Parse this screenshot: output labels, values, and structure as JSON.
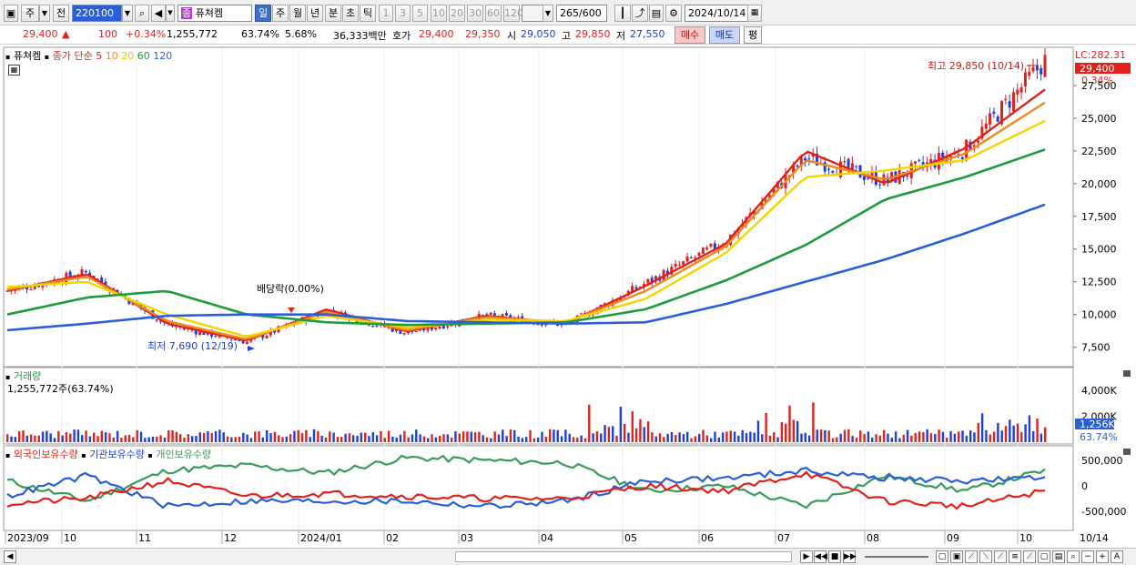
{
  "toolbar": {
    "market_label": "주",
    "prev_label": "전",
    "code": "220100",
    "stock_name": "퓨쳐켐",
    "name_prefix": "종",
    "period_tabs": [
      {
        "label": "일",
        "selected": true
      },
      {
        "label": "주",
        "selected": false
      },
      {
        "label": "월",
        "selected": false
      },
      {
        "label": "년",
        "selected": false
      },
      {
        "label": "분",
        "selected": false
      },
      {
        "label": "초",
        "selected": false
      },
      {
        "label": "틱",
        "selected": false
      }
    ],
    "interval_buttons": [
      "1",
      "3",
      "5",
      "10",
      "20",
      "30",
      "60",
      "120"
    ],
    "count_value": "265",
    "count_total": "/600",
    "date": "2024/10/14"
  },
  "quote": {
    "price": "29,400",
    "arrow": "▲",
    "change": "100",
    "change_pct": "+0.34%",
    "volume": "1,255,772",
    "vol_ratio": "63.74%",
    "turnover": "5.68%",
    "amount": "36,333백만",
    "hoga_label": "호가",
    "ask": "29,400",
    "bid": "29,350",
    "open_label": "시",
    "open": "29,050",
    "high_label": "고",
    "high": "29,850",
    "low_label": "저",
    "low": "27,550",
    "buy_label": "매수",
    "sell_label": "매도",
    "avg_label": "평"
  },
  "price_panel": {
    "title": "퓨쳐켐",
    "ma_label": "종가 단순",
    "ma_periods": [
      {
        "label": "5",
        "color": "#e1221c"
      },
      {
        "label": "10",
        "color": "#f08a1c"
      },
      {
        "label": "20",
        "color": "#f2d600"
      },
      {
        "label": "60",
        "color": "#1f9a3c"
      },
      {
        "label": "120",
        "color": "#2a5fd8"
      }
    ],
    "lc_label": "LC:282.31",
    "last_price_label": "29,400",
    "last_pct_label": "0.34%",
    "high_annot": "최고 29,850 (10/14)",
    "low_annot": "최저 7,690 (12/19)",
    "dividend_annot": "배당락(0.00%)",
    "y_ticks": [
      "27,500",
      "25,000",
      "22,500",
      "20,000",
      "17,500",
      "15,000",
      "12,500",
      "10,000",
      "7,500"
    ]
  },
  "volume_panel": {
    "title": "거래량",
    "value_label": "1,255,772주(63.74%)",
    "y_ticks": [
      "4,000K",
      "2,000K"
    ],
    "last_label": "1,256K",
    "last_pct": "63.74%"
  },
  "holding_panel": {
    "legend": [
      {
        "label": "외국인보유수량",
        "color": "#e1221c"
      },
      {
        "label": "기관보유수량",
        "color": "#2a5fd8"
      },
      {
        "label": "개인보유수량",
        "color": "#3a9a5a"
      }
    ],
    "y_ticks": [
      "500,000",
      "0",
      "-500,000"
    ]
  },
  "x_axis": {
    "labels": [
      "2023/09",
      "10",
      "11",
      "12",
      "2024/01",
      "02",
      "03",
      "04",
      "05",
      "06",
      "07",
      "08",
      "09",
      "10"
    ],
    "end_label": "10/14"
  },
  "chart_data": {
    "type": "candlestick",
    "title": "퓨쳐켐",
    "x": [
      "2023/09",
      "2023/10",
      "2023/11",
      "2023/12",
      "2024/01",
      "2024/02",
      "2024/03",
      "2024/04",
      "2024/05",
      "2024/06",
      "2024/07",
      "2024/08",
      "2024/09",
      "2024/10/14"
    ],
    "close": [
      11800,
      13200,
      9200,
      7900,
      10300,
      8600,
      9900,
      9200,
      12400,
      15600,
      22000,
      20200,
      22600,
      29400
    ],
    "series": [
      {
        "name": "5",
        "values": [
          11800,
          13100,
          9300,
          8000,
          10400,
          8700,
          9900,
          9300,
          12200,
          15400,
          22500,
          20000,
          22700,
          27200
        ]
      },
      {
        "name": "10",
        "values": [
          11900,
          12900,
          9500,
          8100,
          10200,
          8800,
          9800,
          9400,
          11800,
          15200,
          21800,
          20300,
          22300,
          26200
        ]
      },
      {
        "name": "20",
        "values": [
          12100,
          12500,
          10000,
          8300,
          9900,
          9000,
          9600,
          9500,
          11200,
          14700,
          20500,
          21000,
          21800,
          24800
        ]
      },
      {
        "name": "60",
        "values": [
          10000,
          11300,
          11800,
          10000,
          9400,
          9200,
          9300,
          9400,
          10400,
          12600,
          15300,
          18800,
          20500,
          22600
        ]
      },
      {
        "name": "120",
        "values": [
          8800,
          9300,
          9900,
          10000,
          10000,
          9500,
          9400,
          9300,
          9400,
          10800,
          12500,
          14200,
          16200,
          18400
        ]
      }
    ],
    "ylim": [
      6500,
      30000
    ],
    "high": {
      "value": 29850,
      "date": "10/14"
    },
    "low": {
      "value": 7690,
      "date": "12/19"
    }
  }
}
